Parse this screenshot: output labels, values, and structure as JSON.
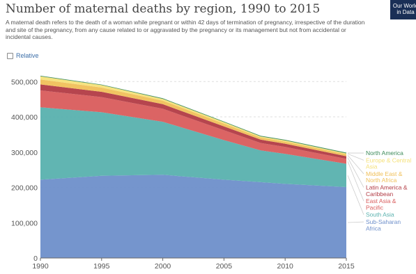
{
  "header": {
    "title": "Number of maternal deaths by region, 1990 to 2015",
    "subtitle": "A maternal death refers to the death of a woman while pregnant or within 42 days of termination of pregnancy, irrespective of the duration and site of the pregnancy, from any cause related to or aggravated by the pregnancy or its management but not from accidental or incidental causes.",
    "logo_line1": "Our World",
    "logo_line2": "in Data",
    "relative_label": "Relative"
  },
  "chart_data": {
    "type": "area",
    "stacked": true,
    "title": "Number of maternal deaths by region, 1990 to 2015",
    "x": [
      1990,
      1995,
      2000,
      2005,
      2008,
      2010,
      2015
    ],
    "xticks": [
      1990,
      1995,
      2000,
      2005,
      2010,
      2015
    ],
    "yticks": [
      0,
      100000,
      200000,
      300000,
      400000,
      500000
    ],
    "ylim": [
      0,
      540000
    ],
    "xlim": [
      1990,
      2015
    ],
    "ytick_labels": [
      "0",
      "100,000",
      "200,000",
      "300,000",
      "400,000",
      "500,000"
    ],
    "grid": true,
    "series": [
      {
        "name": "Sub-Saharan Africa",
        "color": "#6e8fca",
        "values": [
          222000,
          233000,
          236000,
          222000,
          215000,
          210000,
          201000
        ]
      },
      {
        "name": "South Asia",
        "color": "#59b1ae",
        "values": [
          205000,
          180000,
          150000,
          112000,
          90000,
          85000,
          66000
        ]
      },
      {
        "name": "East Asia & Pacific",
        "color": "#d95c5c",
        "values": [
          48000,
          43000,
          37000,
          28000,
          21000,
          20000,
          14000
        ]
      },
      {
        "name": "Latin America & Caribbean",
        "color": "#b23b44",
        "values": [
          17000,
          15000,
          13000,
          11000,
          9500,
          9000,
          7500
        ]
      },
      {
        "name": "Middle East & North Africa",
        "color": "#f0c05a",
        "values": [
          14000,
          12000,
          10000,
          8000,
          6000,
          6000,
          5500
        ]
      },
      {
        "name": "Europe & Central Asia",
        "color": "#f5e17a",
        "values": [
          9000,
          7000,
          5000,
          4000,
          3000,
          3000,
          2500
        ]
      },
      {
        "name": "North America",
        "color": "#3d8b5a",
        "values": [
          1500,
          1500,
          1600,
          1900,
          2000,
          2000,
          2000
        ]
      }
    ]
  }
}
